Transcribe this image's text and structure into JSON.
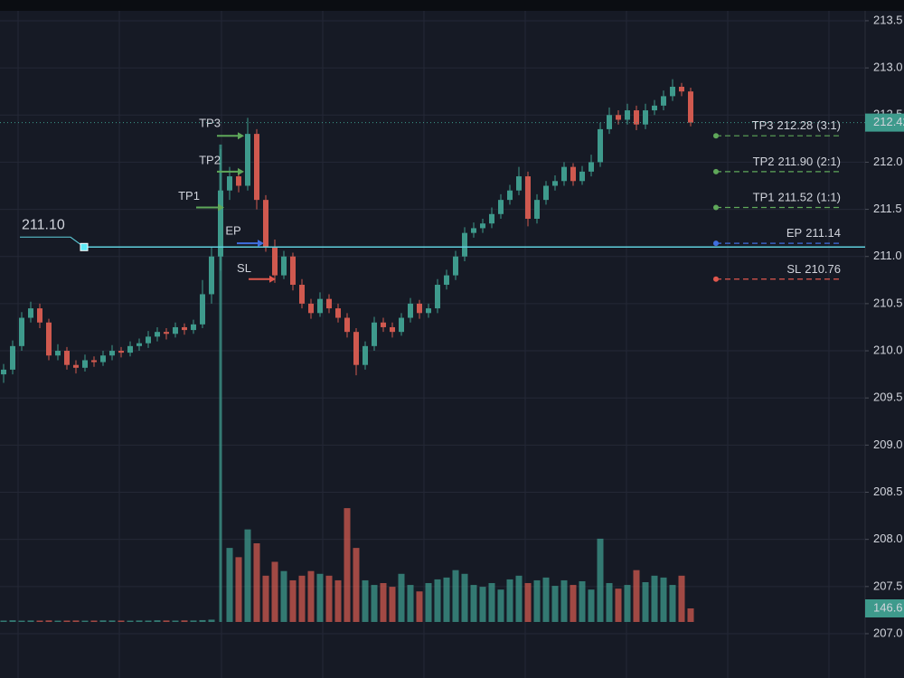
{
  "chart_data": {
    "type": "candlestick",
    "ylim": [
      206.53,
      213.72
    ],
    "yticks": [
      213.5,
      {
        "value": 213,
        "label": "213.0"
      },
      212.5,
      {
        "value": 212,
        "label": "212.0"
      },
      211.5,
      {
        "value": 211,
        "label": "211.0"
      },
      210.5,
      {
        "value": 210,
        "label": "210.0"
      },
      209.5,
      {
        "value": 209,
        "label": "209.0"
      },
      208.5,
      {
        "value": 208,
        "label": "208.0"
      },
      207.5,
      {
        "value": 207,
        "label": "207.0"
      }
    ],
    "grid": true,
    "up_color": "#3e9a8c",
    "down_color": "#d0594f",
    "open": [
      209.75,
      209.8,
      210.05,
      210.35,
      210.45,
      210.3,
      209.95,
      210,
      209.85,
      209.82,
      209.9,
      209.88,
      209.95,
      210,
      209.98,
      210.05,
      210.08,
      210.15,
      210.2,
      210.18,
      210.25,
      210.22,
      210.28,
      210.6,
      211,
      211.7,
      211.85,
      211.75,
      212.3,
      211.6,
      211.1,
      210.8,
      211,
      210.7,
      210.5,
      210.4,
      210.55,
      210.45,
      210.35,
      210.2,
      209.85,
      210.05,
      210.3,
      210.25,
      210.2,
      210.35,
      210.5,
      210.4,
      210.45,
      210.7,
      210.8,
      211,
      211.25,
      211.3,
      211.35,
      211.45,
      211.6,
      211.7,
      211.85,
      211.4,
      211.6,
      211.75,
      211.8,
      211.95,
      211.8,
      211.9,
      212,
      212.35,
      212.5,
      212.45,
      212.55,
      212.4,
      212.55,
      212.6,
      212.7,
      212.8,
      212.75
    ],
    "high": [
      209.86,
      210.11,
      210.41,
      210.52,
      210.5,
      210.34,
      210.07,
      210.04,
      209.9,
      209.96,
      209.94,
      210,
      210.06,
      210.04,
      210.1,
      210.13,
      210.21,
      210.25,
      210.24,
      210.3,
      210.29,
      210.33,
      210.75,
      211.1,
      212.14,
      211.95,
      211.92,
      212.47,
      212.35,
      211.65,
      211.18,
      211.06,
      211.04,
      210.76,
      210.55,
      210.62,
      210.6,
      210.5,
      210.4,
      210.24,
      210.1,
      210.36,
      210.35,
      210.3,
      210.4,
      210.56,
      210.54,
      210.5,
      210.76,
      210.86,
      211.06,
      211.31,
      211.36,
      211.4,
      211.52,
      211.66,
      211.76,
      211.95,
      211.9,
      211.66,
      211.8,
      211.86,
      212,
      211.99,
      211.96,
      212.08,
      212.42,
      212.58,
      212.55,
      212.62,
      212.6,
      212.62,
      212.66,
      212.76,
      212.88,
      212.84,
      212.79
    ],
    "low": [
      209.66,
      209.75,
      210,
      210.3,
      210.24,
      209.9,
      209.9,
      209.8,
      209.76,
      209.78,
      209.83,
      209.84,
      209.9,
      209.93,
      209.94,
      210,
      210.03,
      210.1,
      210.12,
      210.14,
      210.17,
      210.18,
      210.24,
      210.5,
      210.85,
      211.6,
      211.68,
      211.7,
      211.5,
      211.05,
      210.72,
      210.76,
      210.64,
      210.45,
      210.34,
      210.36,
      210.4,
      210.3,
      210.14,
      209.74,
      209.8,
      210,
      210.2,
      210.14,
      210.16,
      210.3,
      210.34,
      210.35,
      210.4,
      210.65,
      210.75,
      210.95,
      211.2,
      211.25,
      211.3,
      211.4,
      211.55,
      211.65,
      211.32,
      211.35,
      211.55,
      211.7,
      211.75,
      211.75,
      211.76,
      211.85,
      211.95,
      212.3,
      212.4,
      212.4,
      212.34,
      212.35,
      212.5,
      212.55,
      212.65,
      212.7,
      212.38
    ],
    "close": [
      209.8,
      210.05,
      210.35,
      210.45,
      210.3,
      209.95,
      210,
      209.85,
      209.82,
      209.9,
      209.88,
      209.95,
      210,
      209.98,
      210.05,
      210.08,
      210.15,
      210.2,
      210.18,
      210.25,
      210.22,
      210.28,
      210.6,
      211,
      211.7,
      211.85,
      211.75,
      212.3,
      211.6,
      211.1,
      210.8,
      211,
      210.7,
      210.5,
      210.4,
      210.55,
      210.45,
      210.35,
      210.2,
      209.85,
      210.05,
      210.3,
      210.25,
      210.2,
      210.35,
      210.5,
      210.4,
      210.45,
      210.7,
      210.8,
      211,
      211.25,
      211.3,
      211.35,
      211.45,
      211.6,
      211.7,
      211.85,
      211.4,
      211.6,
      211.75,
      211.8,
      211.95,
      211.8,
      211.9,
      212,
      212.35,
      212.5,
      212.45,
      212.55,
      212.4,
      212.55,
      212.6,
      212.7,
      212.8,
      212.75,
      212.42
    ],
    "volume": [
      15,
      18,
      14,
      16,
      15,
      17,
      14,
      15,
      16,
      14,
      15,
      17,
      16,
      15,
      14,
      16,
      15,
      18,
      16,
      15,
      17,
      16,
      20,
      25,
      5160,
      800,
      700,
      1000,
      850,
      500,
      650,
      550,
      450,
      500,
      550,
      520,
      500,
      450,
      1230,
      800,
      450,
      400,
      420,
      380,
      520,
      400,
      330,
      420,
      460,
      480,
      560,
      520,
      400,
      380,
      420,
      350,
      460,
      500,
      420,
      450,
      480,
      390,
      450,
      400,
      440,
      350,
      900,
      420,
      360,
      400,
      560,
      430,
      500,
      480,
      400,
      500,
      146.6
    ],
    "volume_ylim": [
      0,
      6722
    ],
    "hline": {
      "value": 211.1,
      "label": "211.10"
    },
    "levels": [
      {
        "name": "TP3",
        "value": 212.28,
        "ratio": "(3:1)",
        "color": "#5fa85a"
      },
      {
        "name": "TP2",
        "value": {
          "value": 211.9,
          "label": "211.90"
        },
        "ratio": "(2:1)",
        "color": "#5fa85a"
      },
      {
        "name": "TP1",
        "value": 211.52,
        "ratio": "(1:1)",
        "color": "#5fa85a"
      },
      {
        "name": "EP",
        "value": 211.14,
        "color": "#3f6ee0"
      },
      {
        "name": "SL",
        "value": 210.76,
        "color": "#e0574d"
      }
    ]
  }
}
